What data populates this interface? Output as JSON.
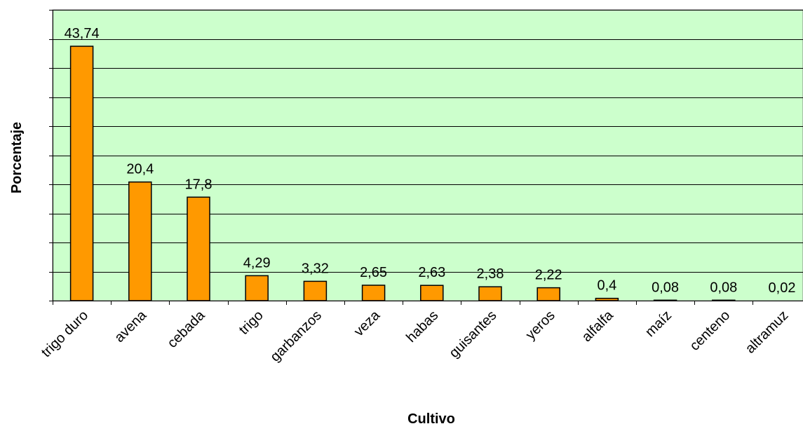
{
  "chart_data": {
    "type": "bar",
    "title": "",
    "xlabel": "Cultivo",
    "ylabel": "Porcentaje",
    "categories": [
      "trigo duro",
      "avena",
      "cebada",
      "trigo",
      "garbanzos",
      "veza",
      "habas",
      "guisantes",
      "yeros",
      "alfalfa",
      "maíz",
      "centeno",
      "altramuz"
    ],
    "values": [
      43.74,
      20.4,
      17.8,
      4.29,
      3.32,
      2.65,
      2.63,
      2.38,
      2.22,
      0.4,
      0.08,
      0.08,
      0.02
    ],
    "value_labels": [
      "43,74",
      "20,4",
      "17,8",
      "4,29",
      "3,32",
      "2,65",
      "2,63",
      "2,38",
      "2,22",
      "0,4",
      "0,08",
      "0,08",
      "0,02"
    ],
    "ylim": [
      0,
      50
    ],
    "y_gridline_step": 5,
    "y_tick_labels_shown": false,
    "grid": true,
    "legend": "none",
    "colors": {
      "plot_background": "#ccffcc",
      "bar_fill": "#ff9900",
      "bar_stroke": "#000000",
      "gridline": "#000000",
      "frame": "#808080"
    }
  }
}
